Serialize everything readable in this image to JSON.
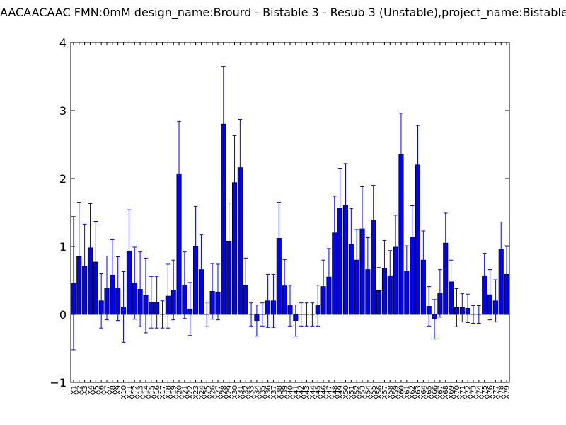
{
  "chart_data": {
    "type": "bar",
    "title": "AACAACAAC  FMN:0mM  design_name:Brourd - Bistable 3 - Resub 3 (Unstable),project_name:Bistable",
    "xlabel": "",
    "ylabel": "",
    "ylim": [
      -1,
      4
    ],
    "yticks": [
      -1,
      0,
      1,
      2,
      3,
      4
    ],
    "grid": false,
    "bar_color": "#0000ff",
    "error_color": "#0000ff",
    "categories": [
      "X1",
      "X2",
      "X3",
      "X4",
      "X5",
      "X6",
      "X7",
      "X8",
      "X9",
      "X10",
      "X11",
      "X12",
      "X13",
      "X14",
      "X15",
      "X16",
      "X17",
      "X18",
      "X19",
      "X20",
      "X21",
      "X22",
      "X23",
      "X24",
      "X25",
      "X26",
      "X27",
      "X28",
      "X29",
      "X30",
      "X31",
      "X32",
      "X33",
      "X34",
      "X35",
      "X36",
      "X37",
      "X38",
      "X39",
      "X40",
      "X41",
      "X42",
      "X43",
      "X44",
      "X45",
      "X46",
      "X47",
      "X48",
      "X49",
      "X50",
      "X51",
      "X52",
      "X53",
      "X54",
      "X55",
      "X56",
      "X57",
      "X58",
      "X59",
      "X60",
      "X61",
      "X62",
      "X63",
      "X64",
      "X65",
      "X66",
      "X67",
      "X68",
      "X69",
      "X70",
      "X71",
      "X72",
      "X73",
      "X74",
      "X75",
      "X76",
      "X77",
      "X78",
      "X79"
    ],
    "values": [
      0.46,
      0.85,
      0.71,
      0.98,
      0.77,
      0.2,
      0.39,
      0.58,
      0.38,
      0.11,
      0.93,
      0.46,
      0.37,
      0.28,
      0.18,
      0.18,
      0.0,
      0.27,
      0.36,
      2.07,
      0.43,
      0.08,
      1.0,
      0.66,
      0.0,
      0.34,
      0.33,
      2.8,
      1.08,
      1.94,
      2.16,
      0.43,
      0.0,
      -0.09,
      0.0,
      0.2,
      0.2,
      1.12,
      0.42,
      0.13,
      -0.09,
      0.0,
      0.0,
      0.0,
      0.13,
      0.41,
      0.55,
      1.2,
      1.56,
      1.6,
      1.03,
      0.8,
      1.26,
      0.66,
      1.38,
      0.35,
      0.68,
      0.57,
      0.99,
      2.35,
      0.64,
      1.14,
      2.2,
      0.8,
      0.12,
      -0.07,
      0.31,
      1.05,
      0.48,
      0.1,
      0.1,
      0.09,
      0.0,
      0.0,
      0.57,
      0.29,
      0.2,
      0.96,
      0.59
    ],
    "errors": [
      0.98,
      0.8,
      0.62,
      0.65,
      0.6,
      0.4,
      0.47,
      0.52,
      0.47,
      0.52,
      0.61,
      0.53,
      0.55,
      0.55,
      0.38,
      0.38,
      0.2,
      0.47,
      0.44,
      0.77,
      0.49,
      0.39,
      0.59,
      0.51,
      0.18,
      0.41,
      0.41,
      0.85,
      0.56,
      0.69,
      0.71,
      0.4,
      0.17,
      0.23,
      0.17,
      0.39,
      0.39,
      0.53,
      0.39,
      0.3,
      0.23,
      0.17,
      0.17,
      0.17,
      0.3,
      0.39,
      0.42,
      0.54,
      0.59,
      0.62,
      0.53,
      0.45,
      0.62,
      0.47,
      0.52,
      0.34,
      0.41,
      0.37,
      0.47,
      0.61,
      0.37,
      0.46,
      0.58,
      0.43,
      0.29,
      0.29,
      0.35,
      0.44,
      0.32,
      0.28,
      0.21,
      0.21,
      0.13,
      0.13,
      0.33,
      0.37,
      0.31,
      0.4,
      0.42
    ]
  }
}
